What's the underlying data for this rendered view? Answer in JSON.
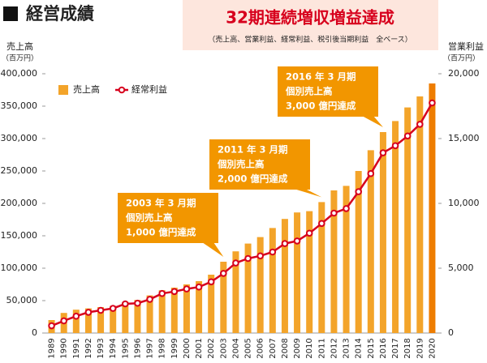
{
  "chart_data": {
    "type": "bar_line",
    "title": "経営成績",
    "banner_title": "32期連続増収増益達成",
    "banner_subtitle": "（売上高、営業利益、経常利益、税引後当期利益　全ベース）",
    "y_label": [
      "売上高",
      "（百万円）"
    ],
    "y2_label": [
      "営業利益",
      "（百万円）"
    ],
    "categories": [
      "1989",
      "1990",
      "1991",
      "1992",
      "1993",
      "1994",
      "1995",
      "1996",
      "1997",
      "1998",
      "1999",
      "2000",
      "2001",
      "2002",
      "2003",
      "2004",
      "2005",
      "2006",
      "2007",
      "2008",
      "2009",
      "2010",
      "2011",
      "2012",
      "2013",
      "2014",
      "2015",
      "2016",
      "2017",
      "2018",
      "2019",
      "2020"
    ],
    "series": [
      {
        "name": "売上高",
        "color": "#f3a42a",
        "highlight_color": "#ee7d00",
        "highlight_categories": [
          "2020"
        ],
        "values": [
          20000,
          31000,
          36000,
          38000,
          40000,
          42000,
          48000,
          51000,
          58000,
          66000,
          70000,
          75000,
          80000,
          90000,
          110000,
          126000,
          138000,
          148000,
          162000,
          176000,
          186000,
          188000,
          202000,
          220000,
          227000,
          250000,
          282000,
          310000,
          327000,
          348000,
          365000,
          385000
        ]
      },
      {
        "name": "経常利益",
        "color": "#d7001d",
        "axis": "y2",
        "values": [
          560,
          940,
          1300,
          1600,
          1750,
          1900,
          2250,
          2300,
          2600,
          3050,
          3200,
          3400,
          3550,
          3950,
          4600,
          5400,
          5750,
          5950,
          6250,
          6900,
          7100,
          7700,
          8450,
          9250,
          9600,
          10900,
          12300,
          13900,
          14450,
          15200,
          16100,
          17750
        ]
      }
    ],
    "ylim": [
      0,
      400000
    ],
    "yticks": [
      0,
      {
        "value": 50000,
        "label": "50,000"
      },
      {
        "value": 100000,
        "label": "100,000"
      },
      {
        "value": 150000,
        "label": "150,000"
      },
      {
        "value": 200000,
        "label": "200,000"
      },
      {
        "value": 250000,
        "label": "250,000"
      },
      {
        "value": 300000,
        "label": "300,000"
      },
      {
        "value": 350000,
        "label": "350,000"
      },
      {
        "value": 400000,
        "label": "400,000"
      }
    ],
    "y2lim": [
      0,
      20000
    ],
    "y2ticks": [
      0,
      {
        "value": 5000,
        "label": "5,000"
      },
      {
        "value": 10000,
        "label": "10,000"
      },
      {
        "value": 15000,
        "label": "15,000"
      },
      {
        "value": 20000,
        "label": "20,000"
      }
    ],
    "annotations": [
      {
        "lines": [
          "2003 年 3 月期",
          "個別売上高",
          "1,000 億円達成"
        ],
        "category": "2003"
      },
      {
        "lines": [
          "2011 年 3 月期",
          "個別売上高",
          "2,000 億円達成"
        ],
        "category": "2011"
      },
      {
        "lines": [
          "2016 年 3 月期",
          "個別売上高",
          "3,000 億円達成"
        ],
        "category": "2016"
      }
    ],
    "grid": false
  }
}
